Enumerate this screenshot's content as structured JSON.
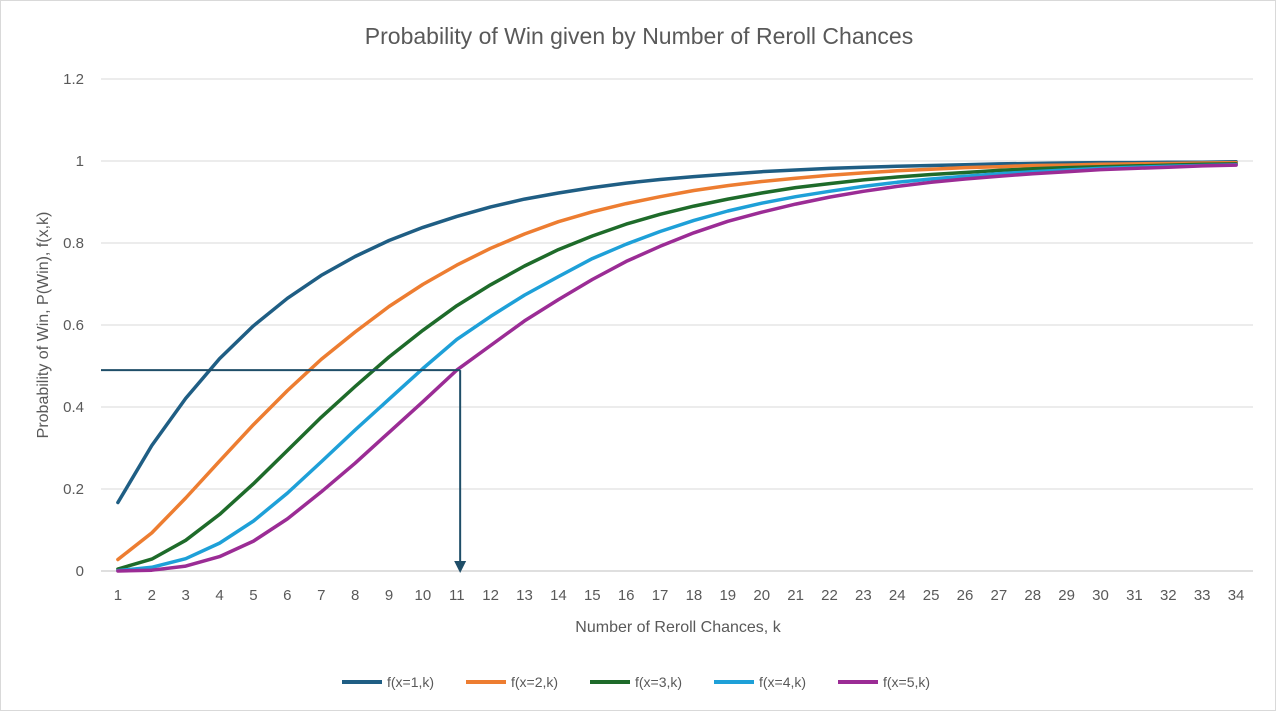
{
  "chart_data": {
    "type": "line",
    "title": "Probability of Win given by Number of Reroll Chances",
    "xlabel": "Number of Reroll Chances, k",
    "ylabel": "Probability of Win, P(Win), f(x,k)",
    "ylim": [
      0,
      1.2
    ],
    "yticks": [
      "0",
      "0.2",
      "0.4",
      "0.6",
      "0.8",
      "1",
      "1.2"
    ],
    "grid": true,
    "legend_position": "bottom",
    "x": [
      1,
      2,
      3,
      4,
      5,
      6,
      7,
      8,
      9,
      10,
      11,
      12,
      13,
      14,
      15,
      16,
      17,
      18,
      19,
      20,
      21,
      22,
      23,
      24,
      25,
      26,
      27,
      28,
      29,
      30,
      31,
      32,
      33,
      34
    ],
    "series": [
      {
        "name": "f(x=1,k)",
        "color": "#1f5e84",
        "values": [
          0.167,
          0.306,
          0.421,
          0.518,
          0.598,
          0.665,
          0.721,
          0.767,
          0.806,
          0.838,
          0.865,
          0.888,
          0.907,
          0.922,
          0.935,
          0.946,
          0.955,
          0.962,
          0.968,
          0.974,
          0.978,
          0.982,
          0.985,
          0.987,
          0.989,
          0.991,
          0.993,
          0.994,
          0.995,
          0.996,
          0.996,
          0.997,
          0.997,
          0.998
        ]
      },
      {
        "name": "f(x=2,k)",
        "color": "#ed7d31",
        "values": [
          0.028,
          0.093,
          0.178,
          0.268,
          0.357,
          0.44,
          0.516,
          0.583,
          0.645,
          0.699,
          0.746,
          0.787,
          0.822,
          0.852,
          0.876,
          0.896,
          0.913,
          0.928,
          0.94,
          0.95,
          0.958,
          0.965,
          0.971,
          0.976,
          0.98,
          0.984,
          0.986,
          0.989,
          0.99,
          0.992,
          0.993,
          0.994,
          0.995,
          0.996
        ]
      },
      {
        "name": "f(x=3,k)",
        "color": "#1e6b2a",
        "values": [
          0.005,
          0.029,
          0.075,
          0.138,
          0.213,
          0.294,
          0.375,
          0.45,
          0.522,
          0.587,
          0.647,
          0.698,
          0.744,
          0.784,
          0.817,
          0.846,
          0.87,
          0.89,
          0.907,
          0.922,
          0.935,
          0.945,
          0.954,
          0.961,
          0.967,
          0.972,
          0.977,
          0.981,
          0.984,
          0.986,
          0.988,
          0.99,
          0.992,
          0.993
        ]
      },
      {
        "name": "f(x=4,k)",
        "color": "#1ea0d8",
        "values": [
          0.001,
          0.009,
          0.03,
          0.068,
          0.122,
          0.19,
          0.266,
          0.344,
          0.419,
          0.494,
          0.565,
          0.621,
          0.673,
          0.718,
          0.762,
          0.797,
          0.828,
          0.855,
          0.878,
          0.897,
          0.913,
          0.926,
          0.938,
          0.948,
          0.956,
          0.963,
          0.969,
          0.974,
          0.978,
          0.982,
          0.985,
          0.987,
          0.989,
          0.991
        ]
      },
      {
        "name": "f(x=5,k)",
        "color": "#9b2c95",
        "values": [
          0.0,
          0.002,
          0.012,
          0.035,
          0.073,
          0.127,
          0.193,
          0.263,
          0.338,
          0.413,
          0.49,
          0.55,
          0.61,
          0.662,
          0.711,
          0.755,
          0.792,
          0.825,
          0.853,
          0.875,
          0.895,
          0.912,
          0.926,
          0.938,
          0.948,
          0.956,
          0.963,
          0.969,
          0.974,
          0.979,
          0.982,
          0.985,
          0.988,
          0.99
        ]
      }
    ],
    "annotation": {
      "type": "arrow",
      "color": "#1f4e68",
      "from_y": 0.49,
      "corner_x": 11.1,
      "to_y": 0
    }
  }
}
